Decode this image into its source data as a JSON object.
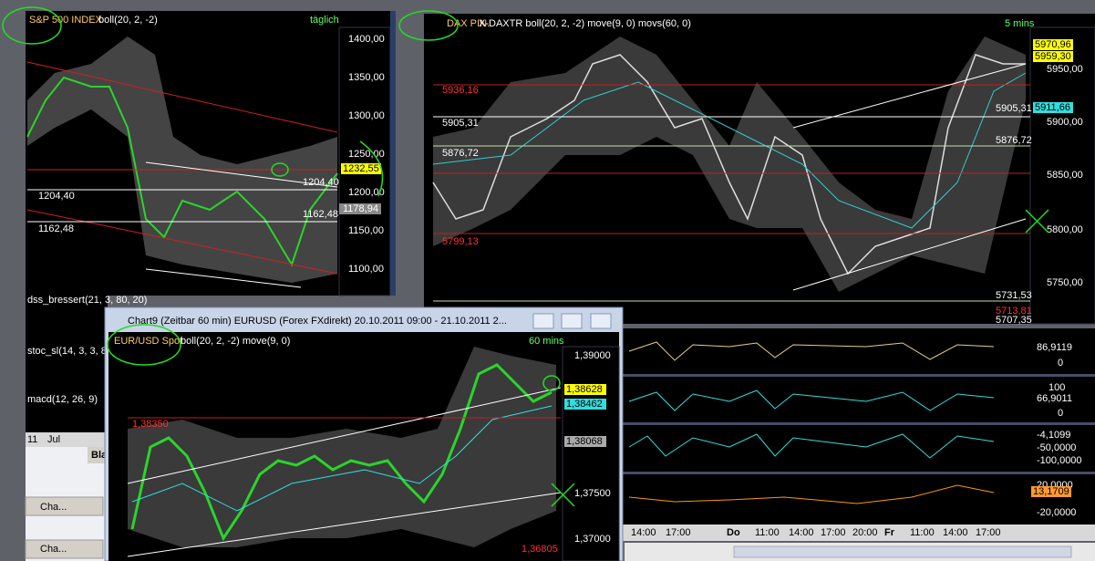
{
  "sp500": {
    "title": "S&P 500 INDEX",
    "params": "boll(20, 2, -2)",
    "period": "täglich",
    "axis": [
      "1400,00",
      "1350,00",
      "1300,00",
      "1250,00",
      "1200,00",
      "1150,00",
      "1100,00"
    ],
    "level_labels": [
      "1204,40",
      "1162,48"
    ],
    "price_tags": [
      "1232,55",
      "1204,40",
      "1178,94",
      "1162,48"
    ]
  },
  "left_indicators": [
    "dss_bressert(21, 3, 80, 20)",
    "stoc_sl(14, 3, 3, 8)",
    "macd(12, 26, 9)"
  ],
  "left_time": [
    "11",
    "Jul"
  ],
  "taskbar": [
    "Bla",
    "Cha...",
    "Cha..."
  ],
  "dax": {
    "title": "DAX PIN.",
    "params": "X-DAXTR boll(20, 2, -2) move(9, 0) movs(60, 0)",
    "period": "5 mins",
    "axis": [
      "5950,00",
      "5900,00",
      "5850,00",
      "5800,00",
      "5750,00"
    ],
    "level_labels": [
      "5936,16",
      "5905,31",
      "5876,72",
      "5799,13"
    ],
    "price_tags": [
      "5970,96",
      "5959,30",
      "5911,66",
      "5905,31",
      "5876,72",
      "5731,53",
      "5713,81",
      "5707,35"
    ]
  },
  "dax_indicators": {
    "labels": [
      "86,9119",
      "0",
      "100",
      "66,9011",
      "0",
      "-4,1099",
      "-50,0000",
      "-100,0000",
      "20,0000",
      "13,1709",
      "-20,0000"
    ]
  },
  "dax_time": [
    "14:00",
    "17:00",
    "Do",
    "11:00",
    "14:00",
    "17:00",
    "20:00",
    "Fr",
    "11:00",
    "14:00",
    "17:00"
  ],
  "eurusd": {
    "window_title": "Chart9 (Zeitbar 60 min)  EURUSD (Forex FXdirekt) 20.10.2011 09:00 - 21.10.2011 2...",
    "title": "EUR/USD Spot",
    "params": "boll(20, 2, -2) move(9, 0)",
    "period": "60 mins",
    "axis": [
      "1,39000",
      "1,37500",
      "1,37000"
    ],
    "price_tags": [
      "1,38628",
      "1,38462",
      "1,38068"
    ],
    "level_labels": [
      "1,38350",
      "1,36805"
    ]
  }
}
